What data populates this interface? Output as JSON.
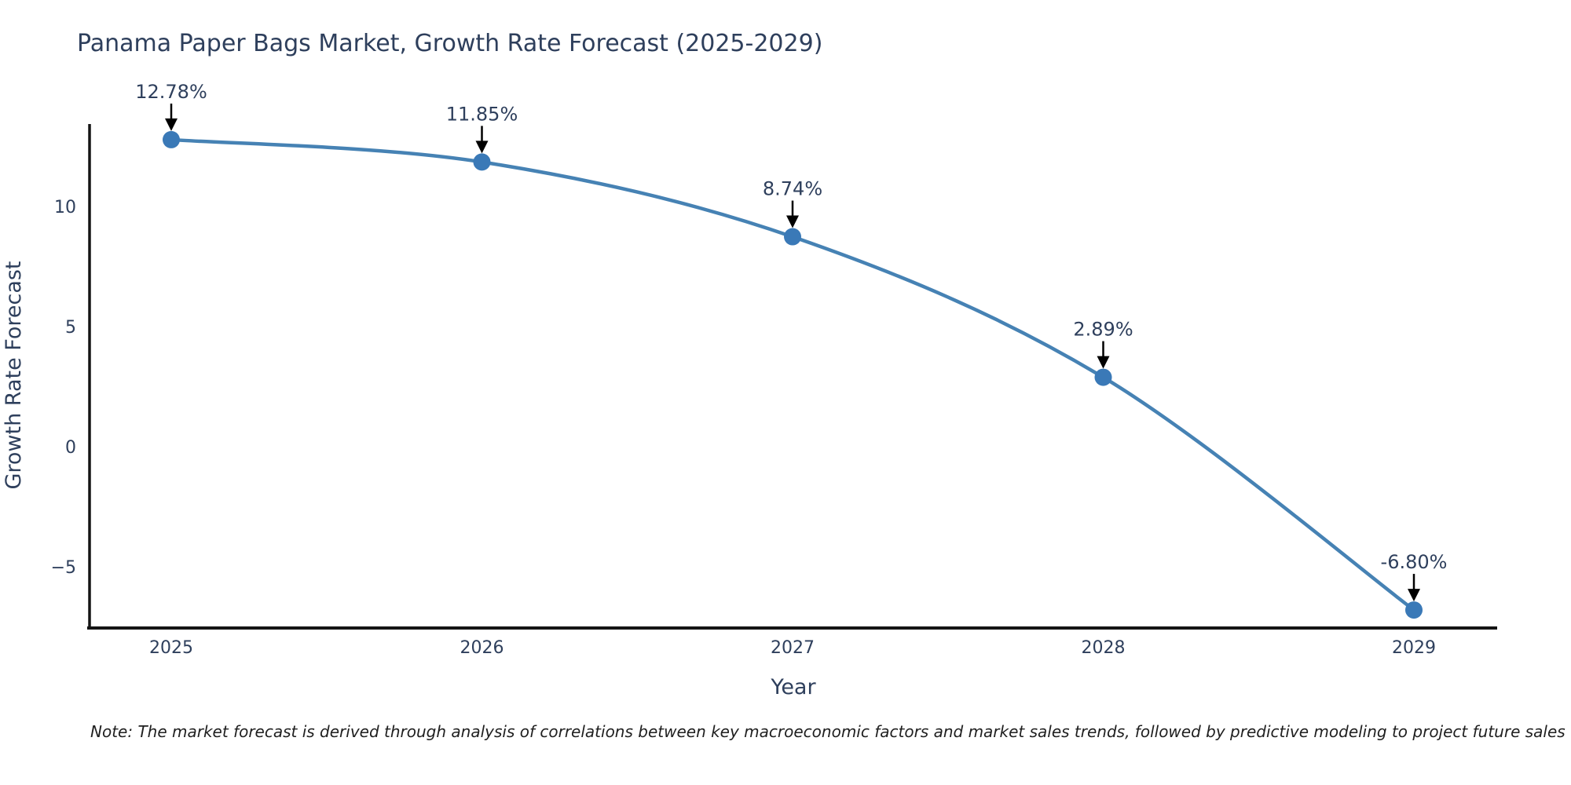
{
  "title": "Panama Paper Bags Market, Growth Rate Forecast (2025-2029)",
  "note": "Note: The market forecast is derived through analysis of correlations between key macroeconomic factors and market sales trends, followed by predictive modeling to project future sales",
  "chart_data": {
    "type": "line",
    "title": "Panama Paper Bags Market, Growth Rate Forecast (2025-2029)",
    "xlabel": "Year",
    "ylabel": "Growth Rate Forecast",
    "x": [
      2025,
      2026,
      2027,
      2028,
      2029
    ],
    "values": [
      12.78,
      11.85,
      8.74,
      2.89,
      -6.8
    ],
    "point_labels": [
      "12.78%",
      "11.85%",
      "8.74%",
      "2.89%",
      "-6.80%"
    ],
    "xtick_labels": [
      "2025",
      "2026",
      "2027",
      "2028",
      "2029"
    ],
    "ytick_values": [
      10,
      5,
      0,
      -5
    ],
    "ytick_labels": [
      "10",
      "5",
      "0",
      "−5"
    ],
    "ylim": [
      -7.6,
      13.4
    ],
    "grid": false,
    "legend": "none",
    "line_color": "#4682b4",
    "marker_color": "#3a79b7",
    "axis_color": "#141414",
    "text_color": "#2e3f5c",
    "arrow_color": "#000000"
  }
}
